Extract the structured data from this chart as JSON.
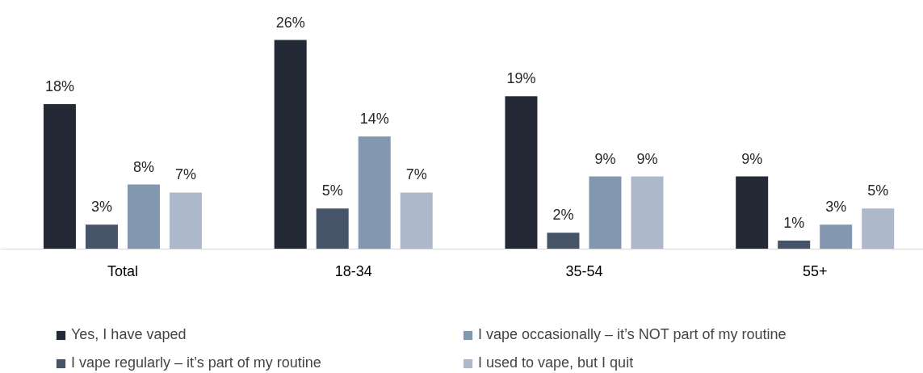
{
  "chart_data": {
    "type": "bar",
    "categories": [
      "Total",
      "18-34",
      "35-54",
      "55+"
    ],
    "legend": "bottom",
    "series": [
      {
        "name": "Yes, I have vaped",
        "color": "#232a35",
        "values": [
          18,
          26,
          19,
          9
        ],
        "value_labels": [
          "18%",
          "26%",
          "19%",
          "9%"
        ]
      },
      {
        "name": "I vape regularly – it’s part of my routine",
        "color": "#465469",
        "values": [
          3,
          5,
          2,
          1
        ],
        "value_labels": [
          "3%",
          "5%",
          "2%",
          "1%"
        ]
      },
      {
        "name": "I vape occasionally – it’s NOT part of my routine",
        "color": "#8497b0",
        "values": [
          8,
          14,
          9,
          3
        ],
        "value_labels": [
          "8%",
          "14%",
          "9%",
          "3%"
        ]
      },
      {
        "name": "I used to vape, but I quit",
        "color": "#adb9ca",
        "values": [
          7,
          7,
          9,
          5
        ],
        "value_labels": [
          "7%",
          "7%",
          "9%",
          "5%"
        ]
      }
    ]
  }
}
